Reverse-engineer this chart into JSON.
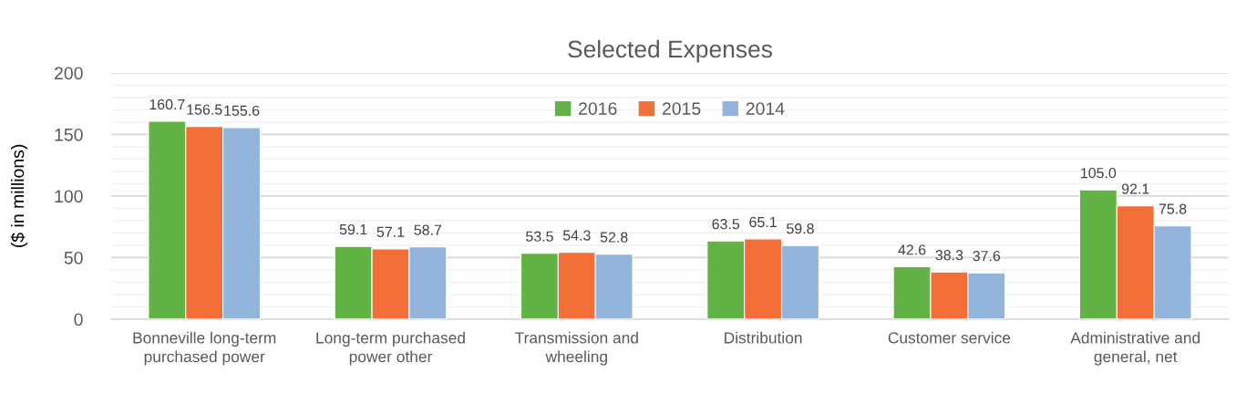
{
  "chart_data": {
    "type": "bar",
    "title": "Selected Expenses",
    "ylabel": "($ in millions)",
    "categories": [
      "Bonneville long-term purchased power",
      "Long-term purchased power other",
      "Transmission and wheeling",
      "Distribution",
      "Customer service",
      "Administrative and general, net"
    ],
    "series": [
      {
        "name": "2016",
        "color": "#62b246",
        "values": [
          160.7,
          59.1,
          53.5,
          63.5,
          42.6,
          105.0
        ],
        "value_labels": [
          "160.7",
          "59.1",
          "53.5",
          "63.5",
          "42.6",
          "105.0"
        ]
      },
      {
        "name": "2015",
        "color": "#f36f38",
        "values": [
          156.5,
          57.1,
          54.3,
          65.1,
          38.3,
          92.1
        ],
        "value_labels": [
          "156.5",
          "57.1",
          "54.3",
          "65.1",
          "38.3",
          "92.1"
        ]
      },
      {
        "name": "2014",
        "color": "#93b4db",
        "values": [
          155.6,
          58.7,
          52.8,
          59.8,
          37.6,
          75.8
        ],
        "value_labels": [
          "155.6",
          "58.7",
          "52.8",
          "59.8",
          "37.6",
          "75.8"
        ]
      }
    ],
    "ylim": [
      0,
      200
    ],
    "yticks": [
      0,
      {
        "value": 10,
        "label": null
      },
      {
        "value": 20,
        "label": null
      },
      {
        "value": 30,
        "label": null
      },
      {
        "value": 40,
        "label": null
      },
      50,
      {
        "value": 60,
        "label": null
      },
      {
        "value": 70,
        "label": null
      },
      {
        "value": 80,
        "label": null
      },
      {
        "value": 90,
        "label": null
      },
      100,
      {
        "value": 110,
        "label": null
      },
      {
        "value": 120,
        "label": null
      },
      {
        "value": 130,
        "label": null
      },
      {
        "value": 140,
        "label": null
      },
      150,
      {
        "value": 160,
        "label": null
      },
      {
        "value": 170,
        "label": null
      },
      {
        "value": 180,
        "label": null
      },
      {
        "value": 190,
        "label": null
      },
      200
    ],
    "grid": "y",
    "legend": "top"
  }
}
